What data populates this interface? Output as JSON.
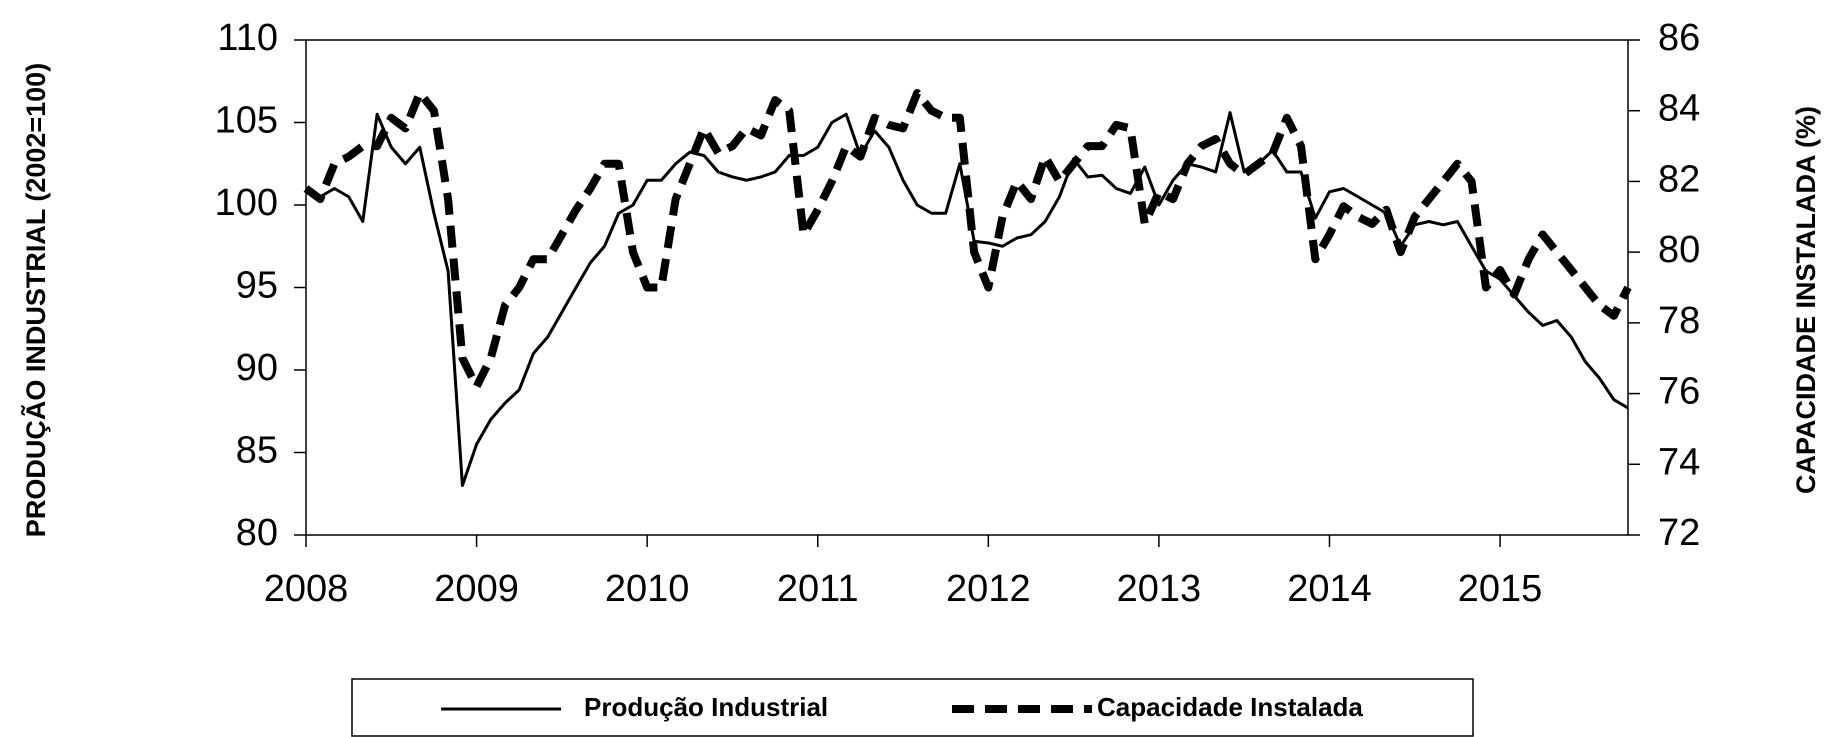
{
  "chart_data": {
    "type": "line",
    "y_label": "PRODUÇÃO INDUSTRIAL  (2002=100)",
    "y2_label": "CAPACIDADE  INSTALADA (%)",
    "x": [
      2008,
      2008.083,
      2008.167,
      2008.25,
      2008.333,
      2008.417,
      2008.5,
      2008.583,
      2008.667,
      2008.75,
      2008.833,
      2008.917,
      2009,
      2009.083,
      2009.167,
      2009.25,
      2009.333,
      2009.417,
      2009.5,
      2009.583,
      2009.667,
      2009.75,
      2009.833,
      2009.917,
      2010,
      2010.083,
      2010.167,
      2010.25,
      2010.333,
      2010.417,
      2010.5,
      2010.583,
      2010.667,
      2010.75,
      2010.833,
      2010.917,
      2011,
      2011.083,
      2011.167,
      2011.25,
      2011.333,
      2011.417,
      2011.5,
      2011.583,
      2011.667,
      2011.75,
      2011.833,
      2011.917,
      2012,
      2012.083,
      2012.167,
      2012.25,
      2012.333,
      2012.417,
      2012.5,
      2012.583,
      2012.667,
      2012.75,
      2012.833,
      2012.917,
      2013,
      2013.083,
      2013.167,
      2013.25,
      2013.333,
      2013.417,
      2013.5,
      2013.583,
      2013.667,
      2013.75,
      2013.833,
      2013.917,
      2014,
      2014.083,
      2014.167,
      2014.25,
      2014.333,
      2014.417,
      2014.5,
      2014.583,
      2014.667,
      2014.75,
      2014.833,
      2014.917,
      2015,
      2015.083,
      2015.167,
      2015.25,
      2015.333,
      2015.417,
      2015.5,
      2015.583,
      2015.667,
      2015.75
    ],
    "series": [
      {
        "name": "Produção Industrial",
        "color": "#000000",
        "dash": false,
        "axis": "y",
        "values": [
          101,
          100.5,
          101,
          100.5,
          99,
          105.5,
          103.5,
          102.5,
          103.5,
          99.5,
          96,
          83,
          85.5,
          87,
          88,
          88.8,
          91,
          92,
          93.5,
          95,
          96.5,
          97.5,
          99.5,
          100,
          101.5,
          101.5,
          102.5,
          103.2,
          103,
          102,
          101.7,
          101.5,
          101.7,
          102,
          103,
          103,
          103.5,
          105,
          105.5,
          103,
          104.5,
          103.5,
          101.5,
          100,
          99.5,
          99.5,
          102.5,
          97.8,
          97.7,
          97.5,
          98,
          98.2,
          99,
          100.5,
          102.8,
          101.7,
          101.8,
          101,
          100.7,
          102.3,
          100,
          101.5,
          102.5,
          102.3,
          102,
          105.6,
          102,
          102.5,
          103.3,
          102,
          102,
          99.2,
          100.8,
          101,
          100.5,
          100,
          99.5,
          97.5,
          98.8,
          99,
          98.8,
          99,
          97.5,
          96,
          95.5,
          94.5,
          93.5,
          92.7,
          93,
          92,
          90.5,
          89.5,
          88.2,
          87.7
        ]
      },
      {
        "name": "Capacidade Instalada",
        "color": "#000000",
        "dash": true,
        "axis": "y2",
        "values": [
          81.8,
          81.5,
          82.5,
          82.7,
          83,
          83,
          83.8,
          83.5,
          84.5,
          84,
          81.5,
          77,
          76.2,
          77,
          78.5,
          79,
          79.8,
          79.8,
          80.5,
          81.2,
          81.8,
          82.5,
          82.5,
          80,
          79,
          79,
          81.5,
          82.5,
          83.5,
          82.8,
          83,
          83.5,
          83.3,
          84.3,
          84,
          80.5,
          81.2,
          82,
          83,
          82.7,
          83.8,
          83.6,
          83.5,
          84.5,
          84,
          83.8,
          83.8,
          80,
          79,
          81,
          82,
          81.5,
          82.7,
          82,
          82.5,
          83,
          83,
          83.6,
          83.5,
          80.8,
          81.7,
          81.5,
          82.5,
          83,
          83.2,
          82.5,
          82.2,
          82.5,
          82.8,
          83.8,
          83,
          79.8,
          80.5,
          81.3,
          81,
          80.8,
          81.2,
          80,
          81,
          81.5,
          82,
          82.5,
          82,
          79,
          79.5,
          78.8,
          79.8,
          80.5,
          80,
          79.5,
          79,
          78.5,
          78.2,
          79
        ]
      }
    ],
    "xlim": [
      2008,
      2015.75
    ],
    "xticks": [
      2008,
      2009,
      2010,
      2011,
      2012,
      2013,
      2014,
      2015
    ],
    "ylim": [
      80,
      110
    ],
    "yticks": [
      80,
      85,
      90,
      95,
      100,
      105,
      110
    ],
    "y2lim": [
      72,
      86
    ],
    "y2ticks": [
      72,
      74,
      76,
      78,
      80,
      82,
      84,
      86
    ],
    "grid": false,
    "legend": "bottom"
  }
}
